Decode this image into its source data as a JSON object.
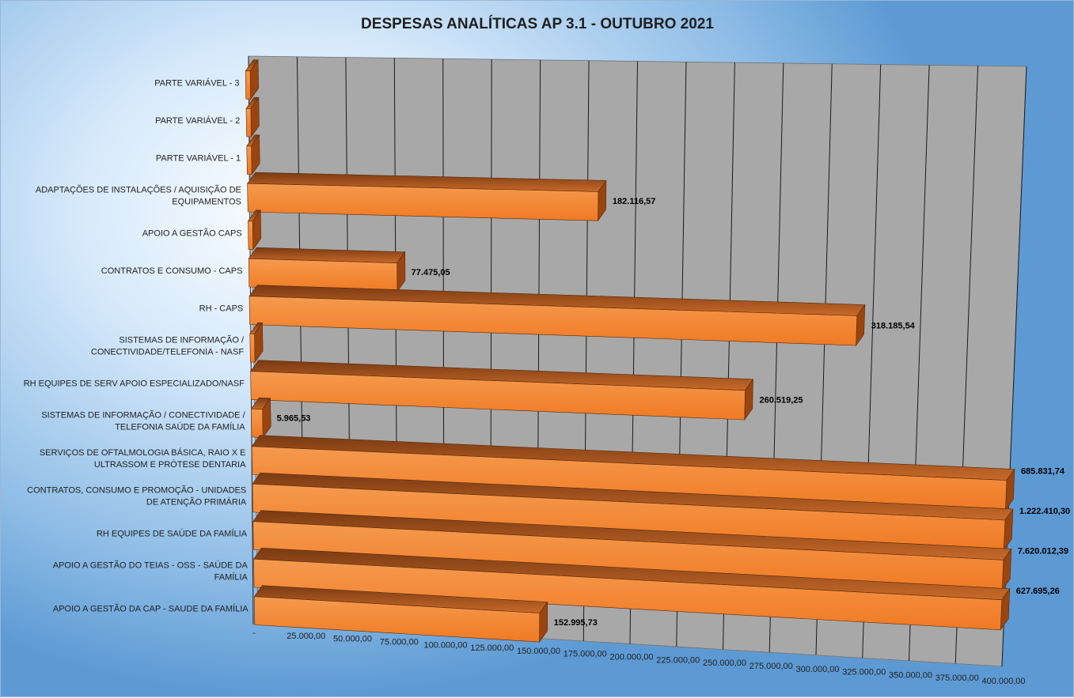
{
  "chart_data": {
    "type": "bar",
    "orientation": "horizontal",
    "title": "DESPESAS ANALÍTICAS AP 3.1 - OUTUBRO 2021",
    "xlabel": "",
    "ylabel": "",
    "xlim": [
      0,
      400000
    ],
    "x_ticks": [
      "-",
      "25.000,00",
      "50.000,00",
      "75.000,00",
      "100.000,00",
      "125.000,00",
      "150.000,00",
      "175.000,00",
      "200.000,00",
      "225.000,00",
      "250.000,00",
      "275.000,00",
      "300.000,00",
      "325.000,00",
      "350.000,00",
      "375.000,00",
      "400.000,00"
    ],
    "grid": true,
    "colors": {
      "bar_front": "#f07a24",
      "bar_top": "#c86a2a",
      "bar_end": "#9a4510",
      "wall": "#a8a8a8",
      "floor": "#8c8c8c"
    },
    "categories": [
      {
        "label": [
          "PARTE VARIÁVEL - 3"
        ],
        "value": 0,
        "value_label": ""
      },
      {
        "label": [
          "PARTE VARIÁVEL - 2"
        ],
        "value": 0,
        "value_label": ""
      },
      {
        "label": [
          "PARTE VARIÁVEL - 1"
        ],
        "value": 0,
        "value_label": ""
      },
      {
        "label": [
          "ADAPTAÇÕES DE INSTALAÇÕES / AQUISIÇÃO DE",
          "EQUIPAMENTOS"
        ],
        "value": 182116.57,
        "value_label": "182.116,57"
      },
      {
        "label": [
          "APOIO A GESTÃO CAPS"
        ],
        "value": 0,
        "value_label": ""
      },
      {
        "label": [
          "CONTRATOS E CONSUMO - CAPS"
        ],
        "value": 77475.05,
        "value_label": "77.475,05"
      },
      {
        "label": [
          "RH - CAPS"
        ],
        "value": 318185.54,
        "value_label": "318.185,54"
      },
      {
        "label": [
          "SISTEMAS DE INFORMAÇÃO /",
          "CONECTIVIDADE/TELEFONIA - NASF"
        ],
        "value": 0,
        "value_label": ""
      },
      {
        "label": [
          "RH EQUIPES DE SERV APOIO ESPECIALIZADO/NASF"
        ],
        "value": 260519.25,
        "value_label": "260.519,25"
      },
      {
        "label": [
          "SISTEMAS DE INFORMAÇÃO / CONECTIVIDADE /",
          "TELEFONIA SAÚDE DA FAMÍLIA"
        ],
        "value": 5965.53,
        "value_label": "5.965,53"
      },
      {
        "label": [
          "SERVIÇOS DE OFTALMOLOGIA BÁSICA, RAIO X E",
          "ULTRASSOM E PRÓTESE DENTARIA"
        ],
        "value": 685831.74,
        "value_label": "685.831,74"
      },
      {
        "label": [
          "CONTRATOS, CONSUMO E PROMOÇÃO - UNIDADES",
          "DE ATENÇÃO PRIMÁRIA"
        ],
        "value": 1222410.3,
        "value_label": "1.222.410,30"
      },
      {
        "label": [
          "RH EQUIPES DE SAÚDE DA FAMÍLIA"
        ],
        "value": 7620012.39,
        "value_label": "7.620.012,39"
      },
      {
        "label": [
          "APOIO A GESTÃO DO TEIAS - OSS - SAÚDE DA",
          "FAMÍLIA"
        ],
        "value": 627695.26,
        "value_label": "627.695,26"
      },
      {
        "label": [
          "APOIO A GESTÃO DA CAP - SAUDE DA FAMÍLIA"
        ],
        "value": 152995.73,
        "value_label": "152.995,73"
      }
    ]
  }
}
